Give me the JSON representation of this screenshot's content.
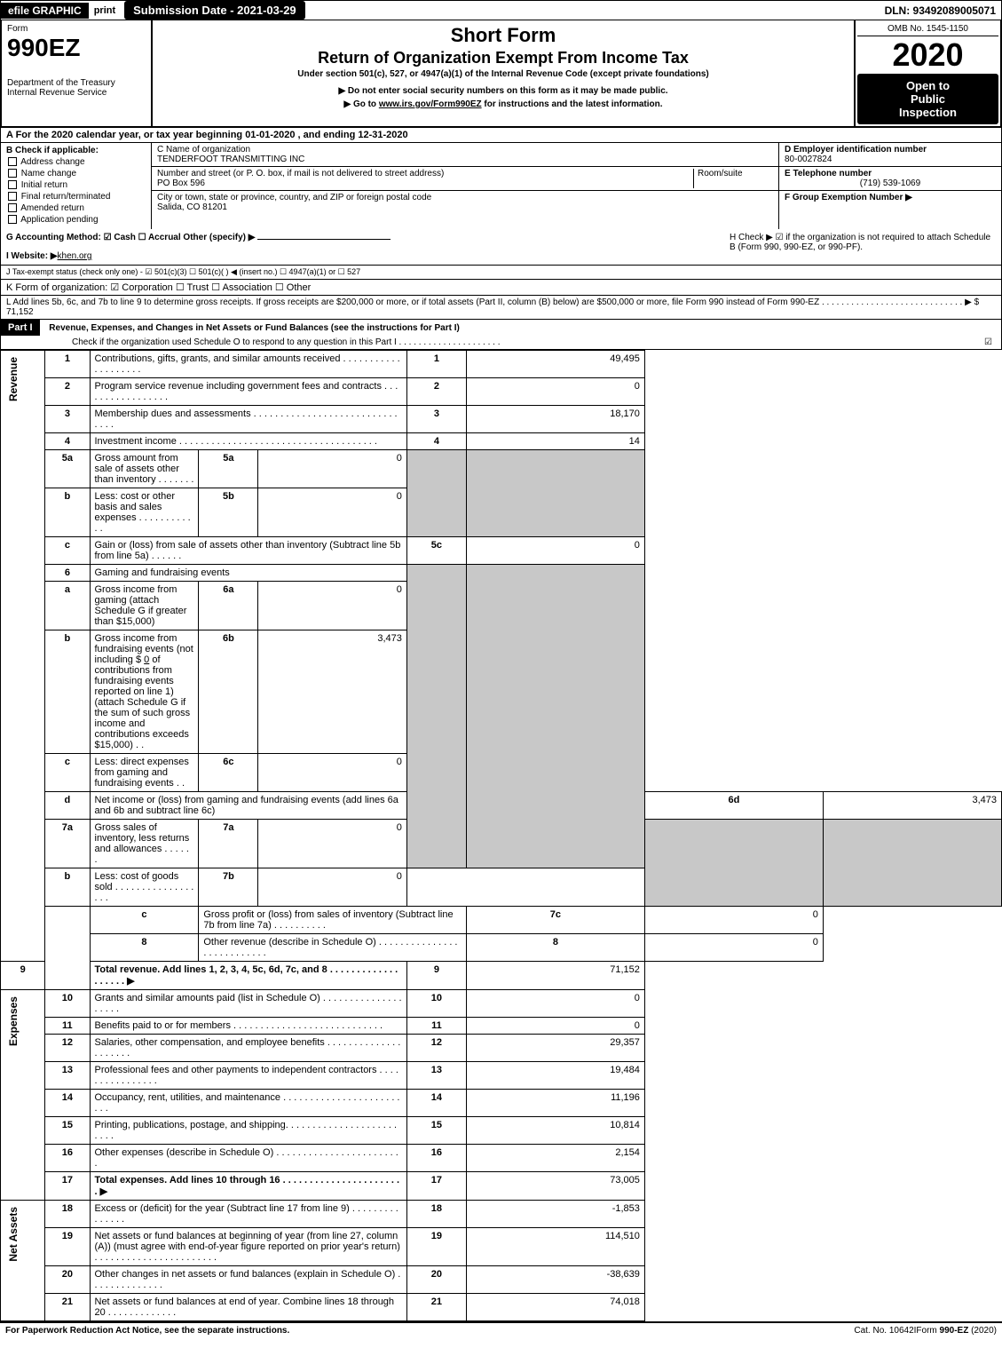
{
  "top": {
    "efile": "efile GRAPHIC",
    "print": "print",
    "submission_label": "Submission Date - 2021-03-29",
    "dln": "DLN: 93492089005071"
  },
  "header": {
    "form_word": "Form",
    "form_num": "990EZ",
    "dept1": "Department of the Treasury",
    "dept2": "Internal Revenue Service",
    "title1": "Short Form",
    "title2": "Return of Organization Exempt From Income Tax",
    "subtitle": "Under section 501(c), 527, or 4947(a)(1) of the Internal Revenue Code (except private foundations)",
    "note1": "▶ Do not enter social security numbers on this form as it may be made public.",
    "note2_pre": "▶ Go to ",
    "note2_link": "www.irs.gov/Form990EZ",
    "note2_post": " for instructions and the latest information.",
    "omb": "OMB No. 1545-1150",
    "year": "2020",
    "open1": "Open to",
    "open2": "Public",
    "open3": "Inspection"
  },
  "section_a": "A  For the 2020 calendar year, or tax year beginning 01-01-2020 , and ending 12-31-2020",
  "col_b": {
    "heading": "B  Check if applicable:",
    "items": [
      "Address change",
      "Name change",
      "Initial return",
      "Final return/terminated",
      "Amended return",
      "Application pending"
    ]
  },
  "col_c": {
    "name_label": "C Name of organization",
    "name": "TENDERFOOT TRANSMITTING INC",
    "addr_label": "Number and street (or P. O. box, if mail is not delivered to street address)",
    "room_label": "Room/suite",
    "addr": "PO Box 596",
    "city_label": "City or town, state or province, country, and ZIP or foreign postal code",
    "city": "Salida, CO  81201"
  },
  "col_de": {
    "d_label": "D Employer identification number",
    "d_val": "80-0027824",
    "e_label": "E Telephone number",
    "e_val": "(719) 539-1069",
    "f_label": "F Group Exemption Number  ▶"
  },
  "gh": {
    "g_label": "G Accounting Method:  ☑ Cash  ☐ Accrual  Other (specify) ▶",
    "i_label": "I Website: ▶",
    "i_val": "khen.org",
    "j_label": "J Tax-exempt status (check only one) - ☑ 501(c)(3) ☐ 501(c)(  ) ◀ (insert no.) ☐ 4947(a)(1) or ☐ 527",
    "h_label": "H  Check ▶ ☑ if the organization is not required to attach Schedule B (Form 990, 990-EZ, or 990-PF)."
  },
  "k_label": "K Form of organization:  ☑ Corporation  ☐ Trust  ☐ Association  ☐ Other",
  "l_text": "L Add lines 5b, 6c, and 7b to line 9 to determine gross receipts. If gross receipts are $200,000 or more, or if total assets (Part II, column (B) below) are $500,000 or more, file Form 990 instead of Form 990-EZ . . . . . . . . . . . . . . . . . . . . . . . . . . . . . ▶ $ 71,152",
  "part1": {
    "label": "Part I",
    "title": "Revenue, Expenses, and Changes in Net Assets or Fund Balances (see the instructions for Part I)",
    "check_line": "Check if the organization used Schedule O to respond to any question in this Part I . . . . . . . . . . . . . . . . . . . . .",
    "check_mark": "☑"
  },
  "side_labels": {
    "revenue": "Revenue",
    "expenses": "Expenses",
    "netassets": "Net Assets"
  },
  "lines": {
    "1": {
      "desc": "Contributions, gifts, grants, and similar amounts received . . . . . . . . . . . . . . . . . . . .",
      "val": "49,495"
    },
    "2": {
      "desc": "Program service revenue including government fees and contracts . . . . . . . . . . . . . . . . .",
      "val": "0"
    },
    "3": {
      "desc": "Membership dues and assessments . . . . . . . . . . . . . . . . . . . . . . . . . . . . . . .",
      "val": "18,170"
    },
    "4": {
      "desc": "Investment income . . . . . . . . . . . . . . . . . . . . . . . . . . . . . . . . . . . . .",
      "val": "14"
    },
    "5a": {
      "desc": "Gross amount from sale of assets other than inventory . . . . . . .",
      "mid_val": "0"
    },
    "5b": {
      "desc": "Less: cost or other basis and sales expenses . . . . . . . . . . . .",
      "mid_val": "0"
    },
    "5c": {
      "desc": "Gain or (loss) from sale of assets other than inventory (Subtract line 5b from line 5a) . . . . . .",
      "val": "0"
    },
    "6": {
      "desc": "Gaming and fundraising events"
    },
    "6a": {
      "desc": "Gross income from gaming (attach Schedule G if greater than $15,000)",
      "mid_val": "0"
    },
    "6b": {
      "desc_pre": "Gross income from fundraising events (not including $ ",
      "desc_amt": "0",
      "desc_post": " of contributions from fundraising events reported on line 1) (attach Schedule G if the sum of such gross income and contributions exceeds $15,000)    . .",
      "mid_val": "3,473"
    },
    "6c": {
      "desc": "Less: direct expenses from gaming and fundraising events       . .",
      "mid_val": "0"
    },
    "6d": {
      "desc": "Net income or (loss) from gaming and fundraising events (add lines 6a and 6b and subtract line 6c)",
      "val": "3,473"
    },
    "7a": {
      "desc": "Gross sales of inventory, less returns and allowances . . . . . .",
      "mid_val": "0"
    },
    "7b": {
      "desc": "Less: cost of goods sold       . . . . . . . . . . . . . . . . . .",
      "mid_val": "0"
    },
    "7c": {
      "desc": "Gross profit or (loss) from sales of inventory (Subtract line 7b from line 7a) . . . . . . . . . .",
      "val": "0"
    },
    "8": {
      "desc": "Other revenue (describe in Schedule O) . . . . . . . . . . . . . . . . . . . . . . . . . . .",
      "val": "0"
    },
    "9": {
      "desc": "Total revenue. Add lines 1, 2, 3, 4, 5c, 6d, 7c, and 8 . . . . . . . . . . . . . . . . . . .   ▶",
      "val": "71,152"
    },
    "10": {
      "desc": "Grants and similar amounts paid (list in Schedule O) . . . . . . . . . . . . . . . . . . . .",
      "val": "0"
    },
    "11": {
      "desc": "Benefits paid to or for members     . . . . . . . . . . . . . . . . . . . . . . . . . . . .",
      "val": "0"
    },
    "12": {
      "desc": "Salaries, other compensation, and employee benefits . . . . . . . . . . . . . . . . . . . . .",
      "val": "29,357"
    },
    "13": {
      "desc": "Professional fees and other payments to independent contractors . . . . . . . . . . . . . . . .",
      "val": "19,484"
    },
    "14": {
      "desc": "Occupancy, rent, utilities, and maintenance . . . . . . . . . . . . . . . . . . . . . . . . .",
      "val": "11,196"
    },
    "15": {
      "desc": "Printing, publications, postage, and shipping. . . . . . . . . . . . . . . . . . . . . . . . .",
      "val": "10,814"
    },
    "16": {
      "desc": "Other expenses (describe in Schedule O)     . . . . . . . . . . . . . . . . . . . . . . . .",
      "val": "2,154"
    },
    "17": {
      "desc": "Total expenses. Add lines 10 through 16     . . . . . . . . . . . . . . . . . . . . . . .   ▶",
      "val": "73,005"
    },
    "18": {
      "desc": "Excess or (deficit) for the year (Subtract line 17 from line 9)      . . . . . . . . . . . . . . .",
      "val": "-1,853"
    },
    "19": {
      "desc": "Net assets or fund balances at beginning of year (from line 27, column (A)) (must agree with end-of-year figure reported on prior year's return) . . . . . . . . . . . . . . . . . . . . . . .",
      "val": "114,510"
    },
    "20": {
      "desc": "Other changes in net assets or fund balances (explain in Schedule O) . . . . . . . . . . . . . .",
      "val": "-38,639"
    },
    "21": {
      "desc": "Net assets or fund balances at end of year. Combine lines 18 through 20 . . . . . . . . . . . . .",
      "val": "74,018"
    }
  },
  "footer": {
    "left": "For Paperwork Reduction Act Notice, see the separate instructions.",
    "center": "Cat. No. 10642I",
    "right": "Form 990-EZ (2020)"
  }
}
